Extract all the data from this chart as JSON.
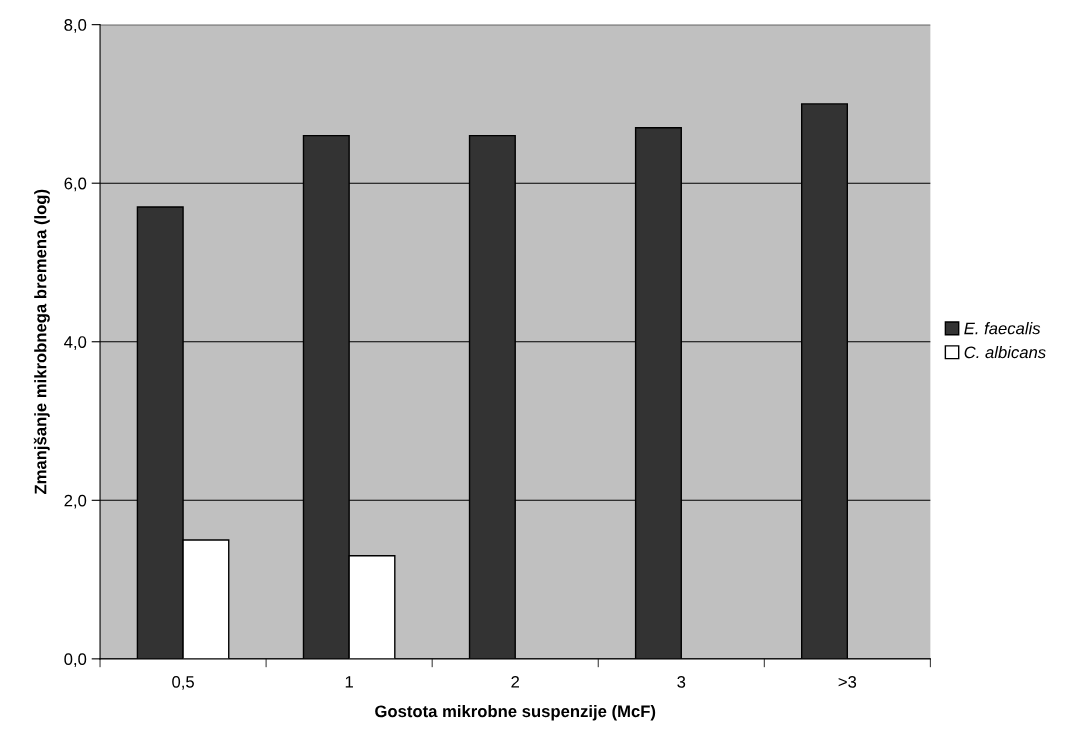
{
  "chart_data": {
    "type": "bar",
    "xlabel": "Gostota mikrobne suspenzije (McF)",
    "ylabel": "Zmanjšanje mikrobnega bremena (log)",
    "categories": [
      "0,5",
      "1",
      "2",
      "3",
      ">3"
    ],
    "series": [
      {
        "name": "E. faecalis",
        "color": "#333333",
        "values": [
          5.7,
          6.6,
          6.6,
          6.7,
          7.0
        ]
      },
      {
        "name": "C. albicans",
        "color": "#ffffff",
        "values": [
          1.5,
          1.3,
          null,
          null,
          null
        ]
      }
    ],
    "ylim": [
      0,
      8
    ],
    "yticks": [
      {
        "value": 0,
        "label": "0,0"
      },
      {
        "value": 2,
        "label": "2,0"
      },
      {
        "value": 4,
        "label": "4,0"
      },
      {
        "value": 6,
        "label": "6,0"
      },
      {
        "value": 8,
        "label": "8,0"
      }
    ],
    "grid": "y",
    "legend": "right"
  }
}
